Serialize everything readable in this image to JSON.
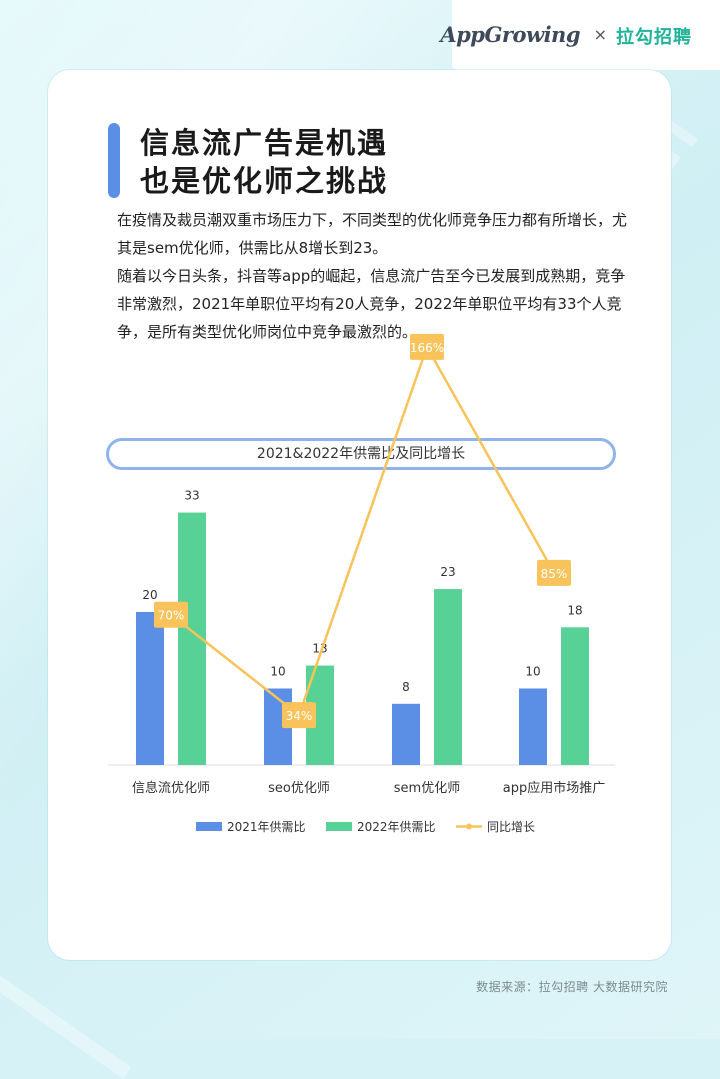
{
  "header": {
    "brand_app": "App",
    "brand_growing": "Growing",
    "separator": "×",
    "brand_lagou": "拉勾招聘"
  },
  "title": {
    "line1": "信息流广告是机遇",
    "line2": "也是优化师之挑战"
  },
  "body": {
    "para1": "在疫情及裁员潮双重市场压力下，不同类型的优化师竞争压力都有所增长，尤其是sem优化师，供需比从8增长到23。",
    "para2": "随着以今日头条，抖音等app的崛起，信息流广告至今已发展到成熟期，竞争非常激烈，2021年单职位平均有20人竞争，2022年单职位平均有33个人竞争，是所有类型优化师岗位中竞争最激烈的。"
  },
  "chart_data": {
    "type": "bar",
    "title": "2021&2022年供需比及同比增长",
    "categories": [
      "信息流优化师",
      "seo优化师",
      "sem优化师",
      "app应用市场推广"
    ],
    "series": [
      {
        "name": "2021年供需比",
        "type": "bar",
        "color": "#5b8fe6",
        "values": [
          20,
          10,
          8,
          10
        ],
        "labels": [
          "20",
          "10",
          "8",
          "10"
        ]
      },
      {
        "name": "2022年供需比",
        "type": "bar",
        "color": "#57d196",
        "values": [
          33,
          13,
          23,
          18
        ],
        "labels": [
          "33",
          "13",
          "23",
          "18"
        ]
      },
      {
        "name": "同比增长",
        "type": "line",
        "color": "#f7c35a",
        "values": [
          70,
          34,
          166,
          85
        ],
        "labels": [
          "70%",
          "34%",
          "166%",
          "85%"
        ]
      }
    ],
    "legend": "bottom",
    "grid": false
  },
  "footer": {
    "source": "数据来源：拉勾招聘 大数据研究院"
  }
}
